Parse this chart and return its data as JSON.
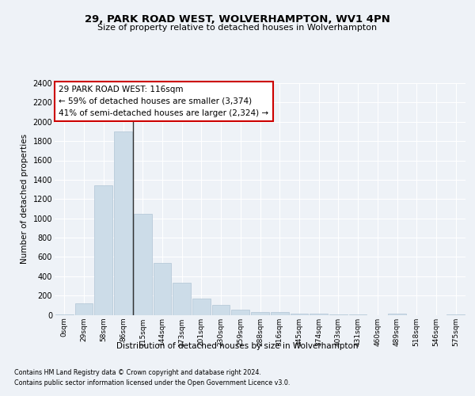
{
  "title1": "29, PARK ROAD WEST, WOLVERHAMPTON, WV1 4PN",
  "title2": "Size of property relative to detached houses in Wolverhampton",
  "xlabel": "Distribution of detached houses by size in Wolverhampton",
  "ylabel": "Number of detached properties",
  "bar_labels": [
    "0sqm",
    "29sqm",
    "58sqm",
    "86sqm",
    "115sqm",
    "144sqm",
    "173sqm",
    "201sqm",
    "230sqm",
    "259sqm",
    "288sqm",
    "316sqm",
    "345sqm",
    "374sqm",
    "403sqm",
    "431sqm",
    "460sqm",
    "489sqm",
    "518sqm",
    "546sqm",
    "575sqm"
  ],
  "bar_values": [
    5,
    120,
    1340,
    1900,
    1050,
    540,
    335,
    170,
    105,
    55,
    25,
    25,
    15,
    10,
    5,
    5,
    0,
    15,
    0,
    0,
    5
  ],
  "bar_color": "#ccdce8",
  "bar_edge_color": "#b0c4d4",
  "vline_index": 4,
  "vline_color": "#333333",
  "annotation_title": "29 PARK ROAD WEST: 116sqm",
  "annotation_line1": "← 59% of detached houses are smaller (3,374)",
  "annotation_line2": "41% of semi-detached houses are larger (2,324) →",
  "annotation_box_facecolor": "#ffffff",
  "annotation_box_edgecolor": "#cc0000",
  "ylim": [
    0,
    2400
  ],
  "yticks": [
    0,
    200,
    400,
    600,
    800,
    1000,
    1200,
    1400,
    1600,
    1800,
    2000,
    2200,
    2400
  ],
  "footnote1": "Contains HM Land Registry data © Crown copyright and database right 2024.",
  "footnote2": "Contains public sector information licensed under the Open Government Licence v3.0.",
  "bg_color": "#eef2f7",
  "plot_bg_color": "#eef2f7",
  "grid_color": "#ffffff"
}
